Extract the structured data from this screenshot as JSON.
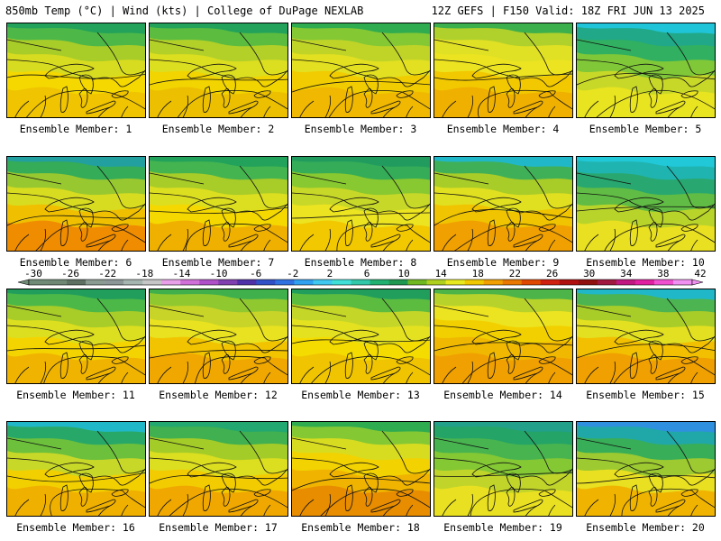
{
  "header": {
    "left": "850mb Temp (°C) | Wind (kts) | College of DuPage NEXLAB",
    "right": "12Z GEFS | F150 Valid: 18Z FRI JUN 13 2025"
  },
  "members": [
    {
      "label": "Ensemble Member: 1"
    },
    {
      "label": "Ensemble Member: 2"
    },
    {
      "label": "Ensemble Member: 3"
    },
    {
      "label": "Ensemble Member: 4"
    },
    {
      "label": "Ensemble Member: 5"
    },
    {
      "label": "Ensemble Member: 6"
    },
    {
      "label": "Ensemble Member: 7"
    },
    {
      "label": "Ensemble Member: 8"
    },
    {
      "label": "Ensemble Member: 9"
    },
    {
      "label": "Ensemble Member: 10"
    },
    {
      "label": "Ensemble Member: 11"
    },
    {
      "label": "Ensemble Member: 12"
    },
    {
      "label": "Ensemble Member: 13"
    },
    {
      "label": "Ensemble Member: 14"
    },
    {
      "label": "Ensemble Member: 15"
    },
    {
      "label": "Ensemble Member: 16"
    },
    {
      "label": "Ensemble Member: 17"
    },
    {
      "label": "Ensemble Member: 18"
    },
    {
      "label": "Ensemble Member: 19"
    },
    {
      "label": "Ensemble Member: 20"
    }
  ],
  "colorbar": {
    "ticks": [
      "-30",
      "-26",
      "-22",
      "-18",
      "-14",
      "-10",
      "-6",
      "-2",
      "2",
      "6",
      "10",
      "14",
      "18",
      "22",
      "26",
      "30",
      "34",
      "38",
      "42"
    ],
    "colors": [
      "#6f8b75",
      "#6e8873",
      "#5d7062",
      "#8a9b91",
      "#8c9696",
      "#a5b5b0",
      "#c6c6c6",
      "#e8a0e8",
      "#d070d8",
      "#b050c8",
      "#8040b0",
      "#5030a8",
      "#3050c8",
      "#3070e0",
      "#30a0f0",
      "#40c8f0",
      "#40e0d8",
      "#30c8a8",
      "#20b070",
      "#209850",
      "#70b820",
      "#b0d020",
      "#e8e820",
      "#f0c800",
      "#f0a000",
      "#e87800",
      "#e04800",
      "#d02010",
      "#b01010",
      "#901010",
      "#a01840",
      "#c01880",
      "#e020a0",
      "#f050d0",
      "#f090f0"
    ]
  }
}
